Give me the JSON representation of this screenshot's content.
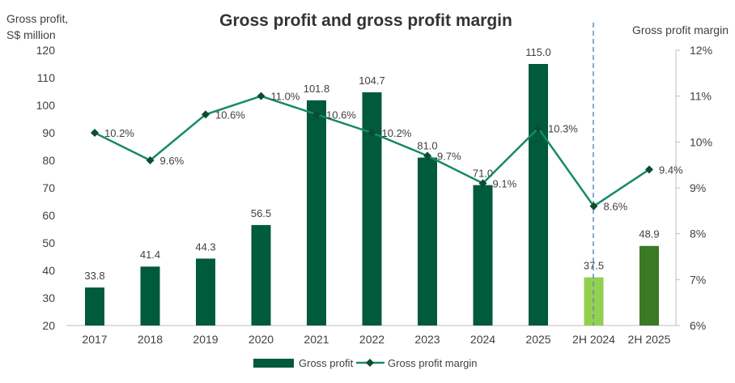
{
  "chart_data": {
    "type": "bar",
    "title": "Gross profit and gross profit margin",
    "ylabel_line1": "Gross profit,",
    "ylabel_line2": "S$ million",
    "y2label": "Gross profit margin",
    "ylim": [
      20,
      120
    ],
    "yticks": [
      20,
      30,
      40,
      50,
      60,
      70,
      80,
      90,
      100,
      110,
      120
    ],
    "y2lim": [
      6,
      12
    ],
    "y2ticks": [
      "6%",
      "7%",
      "8%",
      "9%",
      "10%",
      "11%",
      "12%"
    ],
    "categories": [
      "2017",
      "2018",
      "2019",
      "2020",
      "2021",
      "2022",
      "2023",
      "2024",
      "2025",
      "2H 2024",
      "2H 2025"
    ],
    "series": [
      {
        "name": "Gross profit",
        "type": "bar",
        "values": [
          33.8,
          41.4,
          44.3,
          56.5,
          101.8,
          104.7,
          81.0,
          71.0,
          115.0,
          37.5,
          48.9
        ],
        "labels": [
          "33.8",
          "41.4",
          "44.3",
          "56.5",
          "101.8",
          "104.7",
          "81.0",
          "71.0",
          "115.0",
          "37.5",
          "48.9"
        ]
      },
      {
        "name": "Gross profit margin",
        "type": "line",
        "axis": "right",
        "values": [
          10.2,
          9.6,
          10.6,
          11.0,
          10.6,
          10.2,
          9.7,
          9.1,
          10.3,
          8.6,
          9.4
        ],
        "labels": [
          "10.2%",
          "9.6%",
          "10.6%",
          "11.0%",
          "10.6%",
          "10.2%",
          "9.7%",
          "9.1%",
          "10.3%",
          "8.6%",
          "9.4%"
        ]
      }
    ],
    "legend": {
      "position": "bottom",
      "items": [
        "Gross profit",
        "Gross profit margin"
      ]
    },
    "colors": {
      "bar": "#005a3c",
      "bar_2h2024": "#92d050",
      "bar_2h2025": "#3b7a24",
      "line": "#16896a",
      "marker": "#0b4d2c",
      "divider": "#5b8fb0"
    },
    "grid": false
  }
}
